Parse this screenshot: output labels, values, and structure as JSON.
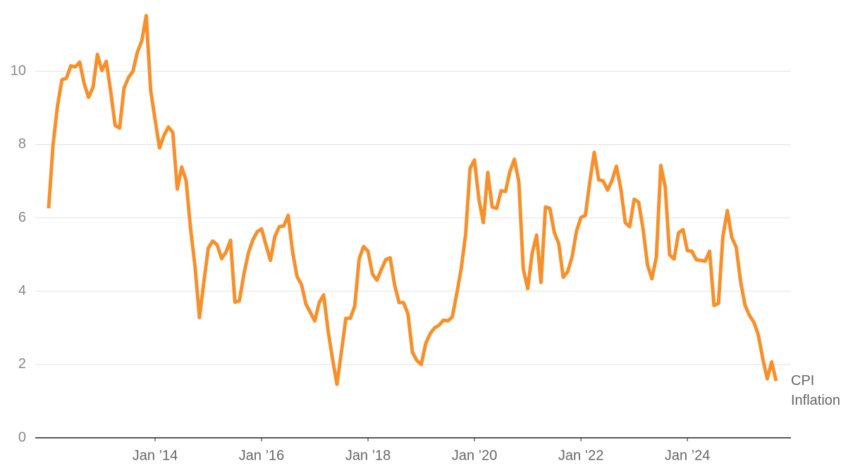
{
  "chart_data": {
    "type": "line",
    "x": [
      "2012-01",
      "2012-02",
      "2012-03",
      "2012-04",
      "2012-05",
      "2012-06",
      "2012-07",
      "2012-08",
      "2012-09",
      "2012-10",
      "2012-11",
      "2012-12",
      "2013-01",
      "2013-02",
      "2013-03",
      "2013-04",
      "2013-05",
      "2013-06",
      "2013-07",
      "2013-08",
      "2013-09",
      "2013-10",
      "2013-11",
      "2013-12",
      "2014-01",
      "2014-02",
      "2014-03",
      "2014-04",
      "2014-05",
      "2014-06",
      "2014-07",
      "2014-08",
      "2014-09",
      "2014-10",
      "2014-11",
      "2014-12",
      "2015-01",
      "2015-02",
      "2015-03",
      "2015-04",
      "2015-05",
      "2015-06",
      "2015-07",
      "2015-08",
      "2015-09",
      "2015-10",
      "2015-11",
      "2015-12",
      "2016-01",
      "2016-02",
      "2016-03",
      "2016-04",
      "2016-05",
      "2016-06",
      "2016-07",
      "2016-08",
      "2016-09",
      "2016-10",
      "2016-11",
      "2016-12",
      "2017-01",
      "2017-02",
      "2017-03",
      "2017-04",
      "2017-05",
      "2017-06",
      "2017-07",
      "2017-08",
      "2017-09",
      "2017-10",
      "2017-11",
      "2017-12",
      "2018-01",
      "2018-02",
      "2018-03",
      "2018-04",
      "2018-05",
      "2018-06",
      "2018-07",
      "2018-08",
      "2018-09",
      "2018-10",
      "2018-11",
      "2018-12",
      "2019-01",
      "2019-02",
      "2019-03",
      "2019-04",
      "2019-05",
      "2019-06",
      "2019-07",
      "2019-08",
      "2019-09",
      "2019-10",
      "2019-11",
      "2019-12",
      "2020-01",
      "2020-02",
      "2020-03",
      "2020-04",
      "2020-05",
      "2020-06",
      "2020-07",
      "2020-08",
      "2020-09",
      "2020-10",
      "2020-11",
      "2020-12",
      "2021-01",
      "2021-02",
      "2021-03",
      "2021-04",
      "2021-05",
      "2021-06",
      "2021-07",
      "2021-08",
      "2021-09",
      "2021-10",
      "2021-11",
      "2021-12",
      "2022-01",
      "2022-02",
      "2022-03",
      "2022-04",
      "2022-05",
      "2022-06",
      "2022-07",
      "2022-08",
      "2022-09",
      "2022-10",
      "2022-11",
      "2022-12",
      "2023-01",
      "2023-02",
      "2023-03",
      "2023-04",
      "2023-05",
      "2023-06",
      "2023-07",
      "2023-08",
      "2023-09",
      "2023-10",
      "2023-11",
      "2023-12",
      "2024-01",
      "2024-02",
      "2024-03",
      "2024-04",
      "2024-05",
      "2024-06",
      "2024-07",
      "2024-08",
      "2024-09",
      "2024-10",
      "2024-11",
      "2024-12",
      "2025-01",
      "2025-02",
      "2025-03",
      "2025-04",
      "2025-05",
      "2025-06",
      "2025-07",
      "2025-08",
      "2025-09"
    ],
    "series": [
      {
        "name": "CPI Inflation",
        "color": "#f7902b",
        "values": [
          6.26,
          8.0,
          9.06,
          9.77,
          9.81,
          10.15,
          10.12,
          10.25,
          9.67,
          9.29,
          9.56,
          10.46,
          10.02,
          10.27,
          9.44,
          8.52,
          8.45,
          9.54,
          9.83,
          10.0,
          10.52,
          10.83,
          11.52,
          9.48,
          8.68,
          7.91,
          8.25,
          8.48,
          8.33,
          6.79,
          7.39,
          7.01,
          5.7,
          4.68,
          3.28,
          4.26,
          5.18,
          5.37,
          5.26,
          4.89,
          5.07,
          5.39,
          3.7,
          3.74,
          4.45,
          5.03,
          5.39,
          5.62,
          5.7,
          5.26,
          4.84,
          5.49,
          5.76,
          5.78,
          6.07,
          5.07,
          4.4,
          4.18,
          3.65,
          3.42,
          3.19,
          3.69,
          3.9,
          2.92,
          2.15,
          1.46,
          2.34,
          3.26,
          3.26,
          3.59,
          4.88,
          5.22,
          5.09,
          4.47,
          4.3,
          4.59,
          4.86,
          4.91,
          4.17,
          3.69,
          3.69,
          3.38,
          2.34,
          2.11,
          2.0,
          2.57,
          2.84,
          3.0,
          3.07,
          3.21,
          3.19,
          3.3,
          3.93,
          4.61,
          5.55,
          7.35,
          7.58,
          6.51,
          5.87,
          7.24,
          6.3,
          6.26,
          6.74,
          6.72,
          7.27,
          7.6,
          6.99,
          4.61,
          4.07,
          5.03,
          5.53,
          4.24,
          6.3,
          6.26,
          5.6,
          5.3,
          4.38,
          4.53,
          4.93,
          5.64,
          6.01,
          6.07,
          6.99,
          7.79,
          7.04,
          7.01,
          6.76,
          7.02,
          7.41,
          6.79,
          5.87,
          5.76,
          6.51,
          6.43,
          5.7,
          4.72,
          4.34,
          4.93,
          7.43,
          6.85,
          4.99,
          4.88,
          5.59,
          5.68,
          5.11,
          5.09,
          4.86,
          4.84,
          4.82,
          5.09,
          3.61,
          3.67,
          5.49,
          6.2,
          5.47,
          5.2,
          4.26,
          3.61,
          3.34,
          3.15,
          2.8,
          2.15,
          1.61,
          2.07,
          1.55
        ]
      }
    ],
    "xlim": [
      "2012-01",
      "2025-09"
    ],
    "xticks": [
      {
        "value": "2014-01",
        "label": "Jan ’14"
      },
      {
        "value": "2016-01",
        "label": "Jan ’16"
      },
      {
        "value": "2018-01",
        "label": "Jan ’18"
      },
      {
        "value": "2020-01",
        "label": "Jan ’20"
      },
      {
        "value": "2022-01",
        "label": "Jan ’22"
      },
      {
        "value": "2024-01",
        "label": "Jan ’24"
      }
    ],
    "ylim": [
      0,
      11.6
    ],
    "yticks": [
      0,
      2,
      4,
      6,
      8,
      10
    ],
    "grid": true
  }
}
